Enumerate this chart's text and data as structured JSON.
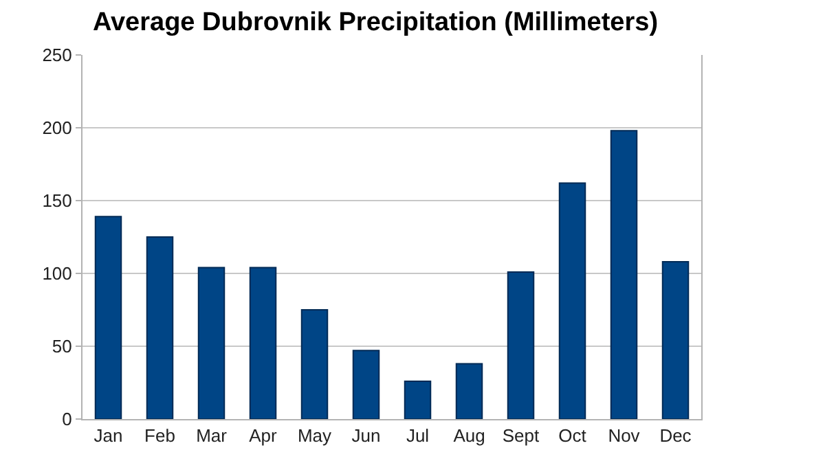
{
  "chart_data": {
    "type": "bar",
    "title": "Average Dubrovnik Precipitation (Millimeters)",
    "categories": [
      "Jan",
      "Feb",
      "Mar",
      "Apr",
      "May",
      "Jun",
      "Jul",
      "Aug",
      "Sept",
      "Oct",
      "Nov",
      "Dec"
    ],
    "values": [
      139,
      125,
      104,
      104,
      75,
      47,
      26,
      38,
      101,
      162,
      198,
      108
    ],
    "color": "#004586",
    "ylim": [
      0,
      250
    ],
    "yticks": [
      0,
      50,
      100,
      150,
      200,
      250
    ],
    "grid": "y"
  }
}
